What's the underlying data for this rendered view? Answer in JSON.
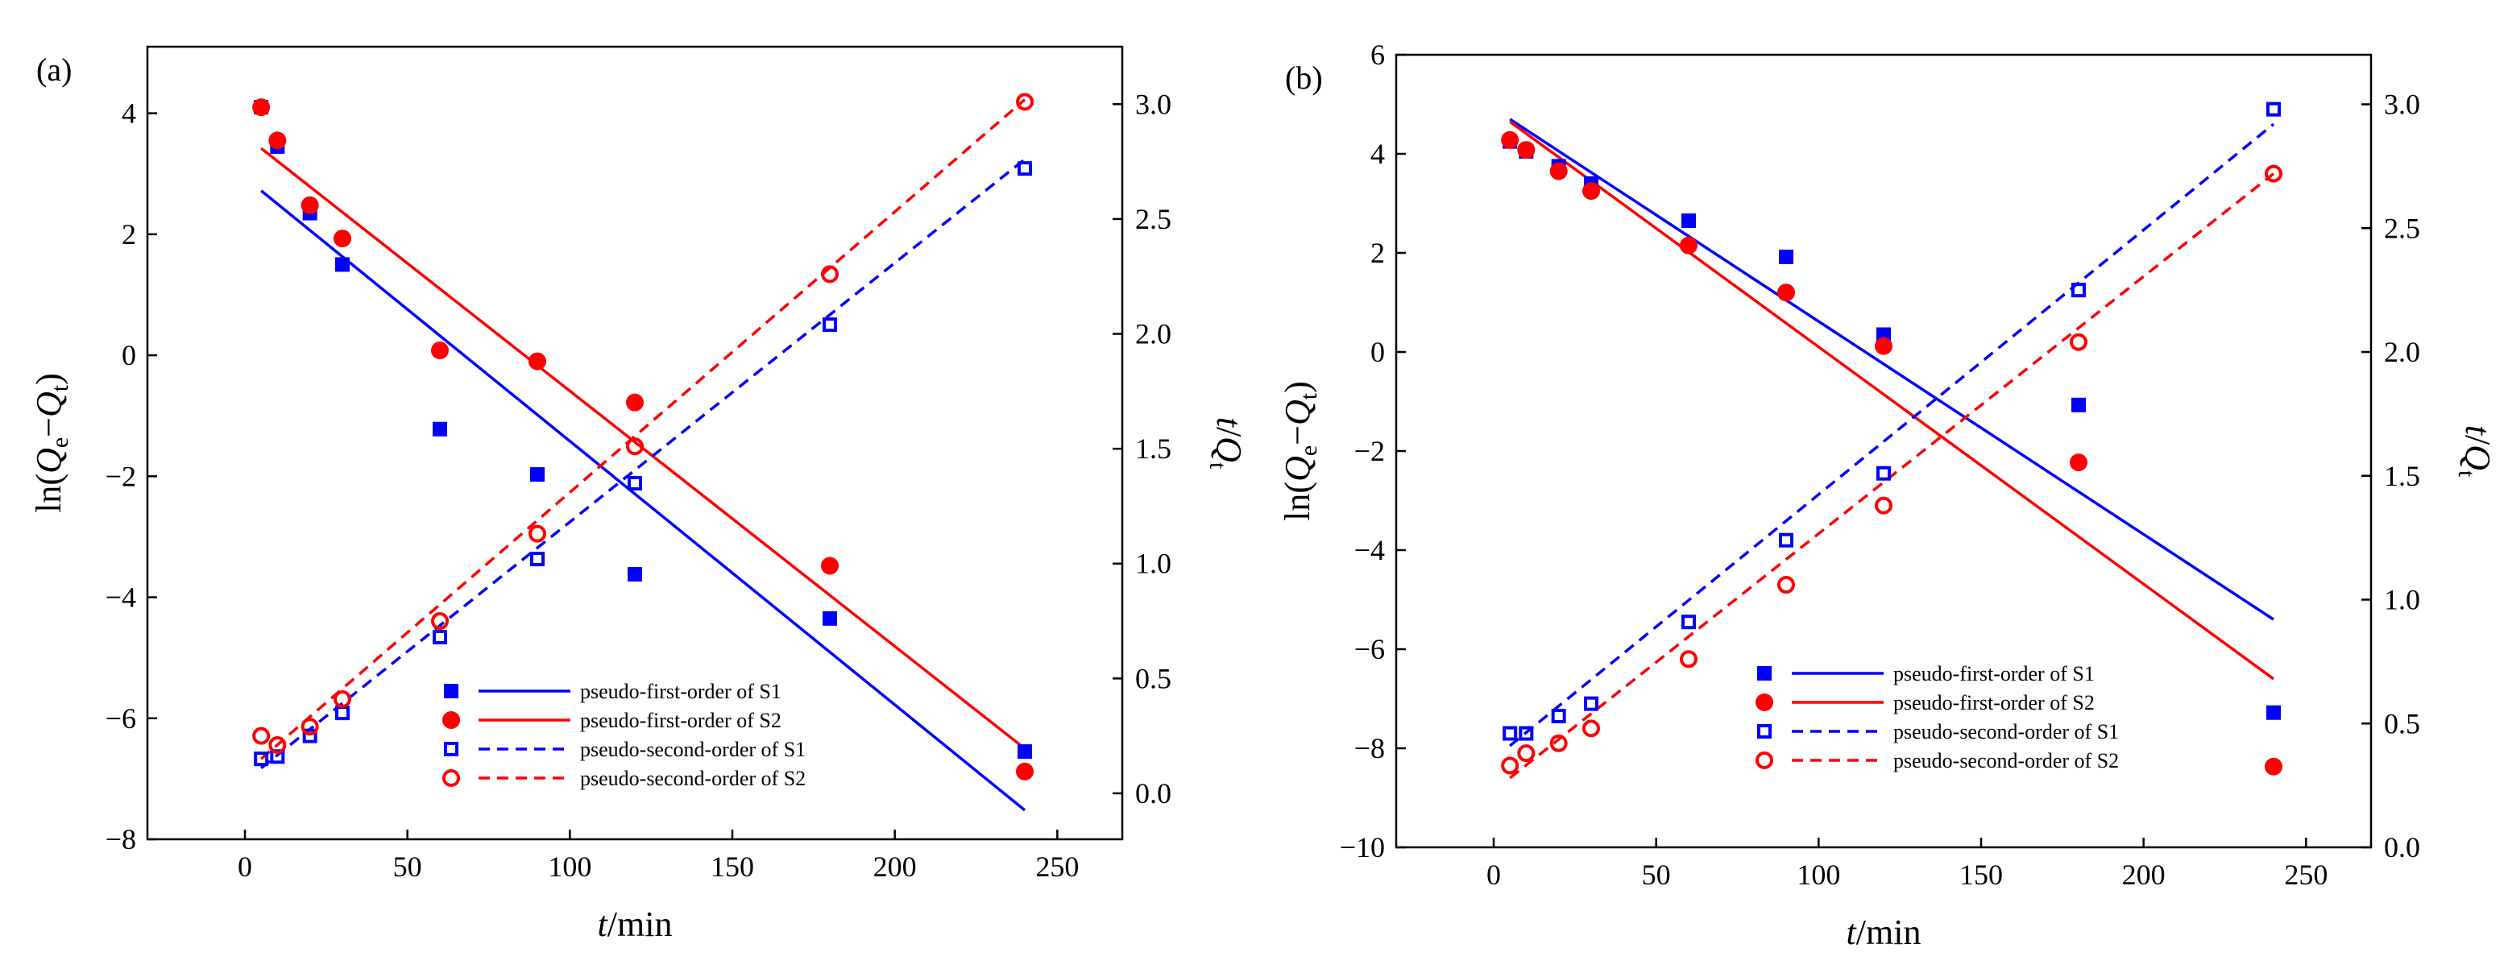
{
  "chart_data": [
    {
      "type": "scatter",
      "panel_label": "(a)",
      "xlabel": {
        "italic": "t",
        "normal": "/min"
      },
      "ylabel_left": {
        "parts": [
          {
            "t": "ln("
          },
          {
            "t": "Q",
            "i": true
          },
          {
            "t": "e",
            "sub": true
          },
          {
            "t": "−"
          },
          {
            "t": "Q",
            "i": true
          },
          {
            "t": "t",
            "sub": true
          },
          {
            "t": ")"
          }
        ]
      },
      "ylabel_right": {
        "parts": [
          {
            "t": "t",
            "i": true
          },
          {
            "t": "/"
          },
          {
            "t": "Q",
            "i": true
          },
          {
            "t": "t",
            "sub": true
          }
        ]
      },
      "xlim": [
        -30,
        270
      ],
      "ylim_left": [
        -8,
        5.1
      ],
      "ylim_right": [
        -0.2,
        3.25
      ],
      "xticks": [
        0,
        50,
        100,
        150,
        200,
        250
      ],
      "yticks_left": [
        -8,
        -6,
        -4,
        -2,
        0,
        2,
        4
      ],
      "yticks_right": [
        0.0,
        0.5,
        1.0,
        1.5,
        2.0,
        2.5,
        3.0
      ],
      "ytick_labels_left": [
        "−8",
        "−6",
        "−4",
        "−2",
        "0",
        "2",
        "4"
      ],
      "ytick_labels_right": [
        "0.0",
        "0.5",
        "1.0",
        "1.5",
        "2.0",
        "2.5",
        "3.0"
      ],
      "legend_position": "bottom-right",
      "series": [
        {
          "name": "pseudo-first-order of S1",
          "color": "#0000ff",
          "marker": "square-filled",
          "line": "solid",
          "axis": "left",
          "x": [
            5,
            10,
            20,
            30,
            60,
            90,
            120,
            180,
            240
          ],
          "y": [
            4.1,
            3.45,
            2.35,
            1.5,
            -1.22,
            -1.97,
            -3.62,
            -4.35,
            -6.55
          ],
          "fit": {
            "x": [
              5,
              240
            ],
            "y": [
              2.72,
              -7.52
            ]
          }
        },
        {
          "name": "pseudo-first-order of S2",
          "color": "#ff0000",
          "marker": "circle-filled",
          "line": "solid",
          "axis": "left",
          "x": [
            5,
            10,
            20,
            30,
            60,
            90,
            120,
            180,
            240
          ],
          "y": [
            4.1,
            3.55,
            2.48,
            1.93,
            0.08,
            -0.1,
            -0.78,
            -3.48,
            -6.88
          ],
          "fit": {
            "x": [
              5,
              240
            ],
            "y": [
              3.42,
              -6.5
            ]
          }
        },
        {
          "name": "pseudo-second-order of S1",
          "color": "#0000ff",
          "marker": "square-open",
          "line": "dashed",
          "axis": "right",
          "x": [
            5,
            10,
            20,
            30,
            60,
            90,
            120,
            180,
            240
          ],
          "y": [
            0.15,
            0.16,
            0.25,
            0.35,
            0.68,
            1.02,
            1.35,
            2.04,
            2.72
          ],
          "fit": {
            "x": [
              5,
              240
            ],
            "y": [
              0.11,
              2.76
            ]
          }
        },
        {
          "name": "pseudo-second-order of S2",
          "color": "#ff0000",
          "marker": "circle-open",
          "line": "dashed",
          "axis": "right",
          "x": [
            5,
            10,
            20,
            30,
            60,
            90,
            120,
            180,
            240
          ],
          "y": [
            0.25,
            0.21,
            0.29,
            0.41,
            0.75,
            1.13,
            1.51,
            2.26,
            3.01
          ],
          "fit": {
            "x": [
              5,
              240
            ],
            "y": [
              0.15,
              3.02
            ]
          }
        }
      ]
    },
    {
      "type": "scatter",
      "panel_label": "(b)",
      "xlabel": {
        "italic": "t",
        "normal": "/min"
      },
      "ylabel_left": {
        "parts": [
          {
            "t": "ln("
          },
          {
            "t": "Q",
            "i": true
          },
          {
            "t": "e",
            "sub": true
          },
          {
            "t": "−"
          },
          {
            "t": "Q",
            "i": true
          },
          {
            "t": "t",
            "sub": true
          },
          {
            "t": ")"
          }
        ]
      },
      "ylabel_right": {
        "parts": [
          {
            "t": "t",
            "i": true
          },
          {
            "t": "/"
          },
          {
            "t": "Q",
            "i": true
          },
          {
            "t": "t",
            "sub": true
          }
        ]
      },
      "xlim": [
        -30,
        270
      ],
      "ylim_left": [
        -10,
        6
      ],
      "ylim_right": [
        0.0,
        3.2
      ],
      "xticks": [
        0,
        50,
        100,
        150,
        200,
        250
      ],
      "yticks_left": [
        -10,
        -8,
        -6,
        -4,
        -2,
        0,
        2,
        4,
        6
      ],
      "yticks_right": [
        0.0,
        0.5,
        1.0,
        1.5,
        2.0,
        2.5,
        3.0
      ],
      "ytick_labels_left": [
        "−10",
        "−8",
        "−6",
        "−4",
        "−2",
        "0",
        "2",
        "4",
        "6"
      ],
      "ytick_labels_right": [
        "0.0",
        "0.5",
        "1.0",
        "1.5",
        "2.0",
        "2.5",
        "3.0"
      ],
      "legend_position": "bottom-right",
      "series": [
        {
          "name": "pseudo-first-order of S1",
          "color": "#0000ff",
          "marker": "square-filled",
          "line": "solid",
          "axis": "left",
          "x": [
            5,
            10,
            20,
            30,
            60,
            90,
            120,
            180,
            240
          ],
          "y": [
            4.25,
            4.05,
            3.75,
            3.4,
            2.65,
            1.92,
            0.35,
            -1.07,
            -7.28
          ],
          "fit": {
            "x": [
              5,
              240
            ],
            "y": [
              4.7,
              -5.4
            ]
          }
        },
        {
          "name": "pseudo-first-order of S2",
          "color": "#ff0000",
          "marker": "circle-filled",
          "line": "solid",
          "axis": "left",
          "x": [
            5,
            10,
            20,
            30,
            60,
            90,
            120,
            180,
            240
          ],
          "y": [
            4.28,
            4.08,
            3.65,
            3.25,
            2.15,
            1.2,
            0.12,
            -2.23,
            -8.37
          ],
          "fit": {
            "x": [
              5,
              240
            ],
            "y": [
              4.65,
              -6.6
            ]
          }
        },
        {
          "name": "pseudo-second-order of S1",
          "color": "#0000ff",
          "marker": "square-open",
          "line": "dashed",
          "axis": "right",
          "x": [
            5,
            10,
            20,
            30,
            60,
            90,
            120,
            180,
            240
          ],
          "y": [
            0.46,
            0.46,
            0.53,
            0.58,
            0.91,
            1.24,
            1.51,
            2.25,
            2.98
          ],
          "fit": {
            "x": [
              5,
              240
            ],
            "y": [
              0.41,
              2.92
            ]
          }
        },
        {
          "name": "pseudo-second-order of S2",
          "color": "#ff0000",
          "marker": "circle-open",
          "line": "dashed",
          "axis": "right",
          "x": [
            5,
            10,
            20,
            30,
            60,
            90,
            120,
            180,
            240
          ],
          "y": [
            0.33,
            0.38,
            0.42,
            0.48,
            0.76,
            1.06,
            1.38,
            2.04,
            2.72
          ],
          "fit": {
            "x": [
              5,
              240
            ],
            "y": [
              0.28,
              2.72
            ]
          }
        }
      ]
    }
  ]
}
